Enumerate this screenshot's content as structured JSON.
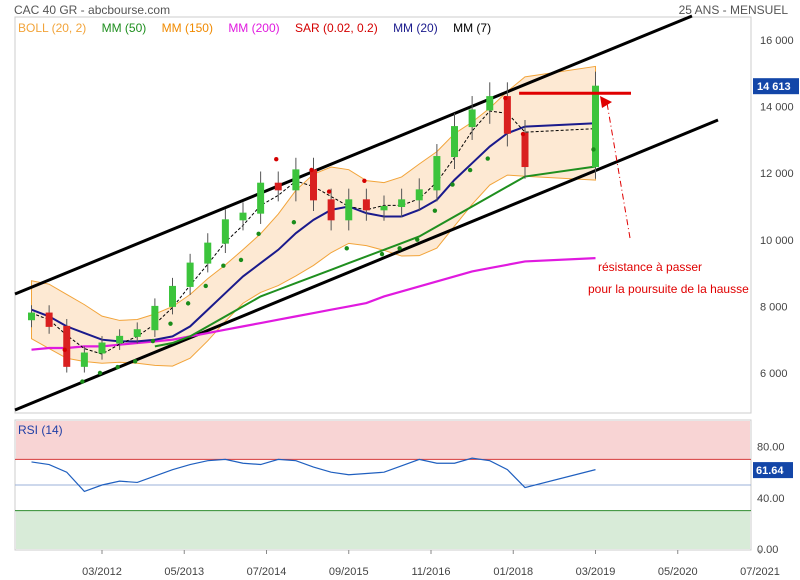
{
  "header": {
    "title": "CAC 40 GR - abcbourse.com",
    "period": "25 ANS - MENSUEL"
  },
  "legend": [
    {
      "label": "BOLL (20, 2)",
      "color": "#f2a43a"
    },
    {
      "label": "MM (50)",
      "color": "#1f8f1f"
    },
    {
      "label": "MM (150)",
      "color": "#f08a00"
    },
    {
      "label": "MM (200)",
      "color": "#e01adf"
    },
    {
      "label": "SAR (0.02, 0.2)",
      "color": "#d40000"
    },
    {
      "label": "MM (20)",
      "color": "#1a1a8c"
    },
    {
      "label": "MM (7)",
      "color": "#000000"
    }
  ],
  "annotations": {
    "line1": "résistance à passer",
    "line2": "pour la poursuite de la hausse"
  },
  "last_price_label": "14 613",
  "rsi_panel": {
    "title": "RSI (14)",
    "value_label": "61.64",
    "overbought": 70,
    "oversold": 30
  },
  "chart_data": [
    {
      "type": "line",
      "title": "CAC 40 GR - abcbourse.com",
      "subtitle": "25 ANS - MENSUEL",
      "x_ticks": [
        "03/2012",
        "05/2013",
        "07/2014",
        "09/2015",
        "11/2016",
        "01/2018",
        "03/2019",
        "05/2020",
        "07/2021"
      ],
      "y_ticks": [
        6000,
        8000,
        10000,
        12000,
        14000,
        16000
      ],
      "ylim": [
        4900,
        16900
      ],
      "grid": false,
      "last_value": 14613,
      "resistance_level": 14400,
      "series": [
        {
          "name": "MM (20)",
          "values": [
            7900,
            7700,
            7400,
            7200,
            7000,
            6950,
            6950,
            7000,
            7100,
            7400,
            7900,
            8400,
            8900,
            9300,
            9700,
            10200,
            10600,
            10900,
            11000,
            10800,
            10700,
            10700,
            10900,
            11200,
            11800,
            12300,
            12800,
            13200,
            13400,
            13500
          ]
        },
        {
          "name": "MM (50)",
          "values": [
            null,
            null,
            null,
            null,
            null,
            null,
            null,
            6800,
            6900,
            7100,
            7400,
            7700,
            8000,
            8300,
            8500,
            8700,
            8900,
            9100,
            9300,
            9500,
            9700,
            9900,
            10100,
            10400,
            10700,
            11000,
            11300,
            11600,
            11900,
            12200
          ]
        },
        {
          "name": "MM (200)",
          "values": [
            6700,
            6750,
            6750,
            6800,
            6800,
            6850,
            6900,
            6950,
            7000,
            7100,
            7200,
            7300,
            7400,
            7500,
            7600,
            7700,
            7800,
            7900,
            8000,
            8100,
            8300,
            8450,
            8600,
            8750,
            8900,
            9050,
            9150,
            9250,
            9350,
            9450
          ]
        },
        {
          "name": "RSI (14)",
          "values": [
            68,
            66,
            60,
            45,
            50,
            53,
            52,
            57,
            62,
            66,
            69,
            70,
            67,
            66,
            70,
            69,
            64,
            60,
            58,
            59,
            60,
            65,
            70,
            67,
            67,
            71,
            69,
            62,
            48,
            62
          ]
        }
      ],
      "close": [
        7800,
        7400,
        6200,
        6600,
        6900,
        7100,
        7300,
        8000,
        8600,
        9300,
        9900,
        10600,
        10800,
        11700,
        11500,
        12100,
        11200,
        10600,
        11200,
        10900,
        11000,
        11200,
        11500,
        12500,
        13400,
        13900,
        14300,
        13200,
        12200,
        14613
      ],
      "x_dates": [
        "2011-03",
        "2011-06",
        "2011-09",
        "2011-12",
        "2012-03",
        "2012-06",
        "2012-09",
        "2012-12",
        "2013-03",
        "2013-06",
        "2013-09",
        "2013-12",
        "2014-03",
        "2014-06",
        "2014-09",
        "2014-12",
        "2015-03",
        "2015-06",
        "2015-09",
        "2015-12",
        "2016-03",
        "2016-06",
        "2016-09",
        "2016-12",
        "2017-03",
        "2017-06",
        "2017-09",
        "2017-12",
        "2018-03",
        "2019-03"
      ]
    },
    {
      "type": "line",
      "title": "RSI (14)",
      "y_ticks": [
        0,
        40,
        80
      ],
      "ylim": [
        0,
        100
      ],
      "last_value": 61.64
    }
  ]
}
